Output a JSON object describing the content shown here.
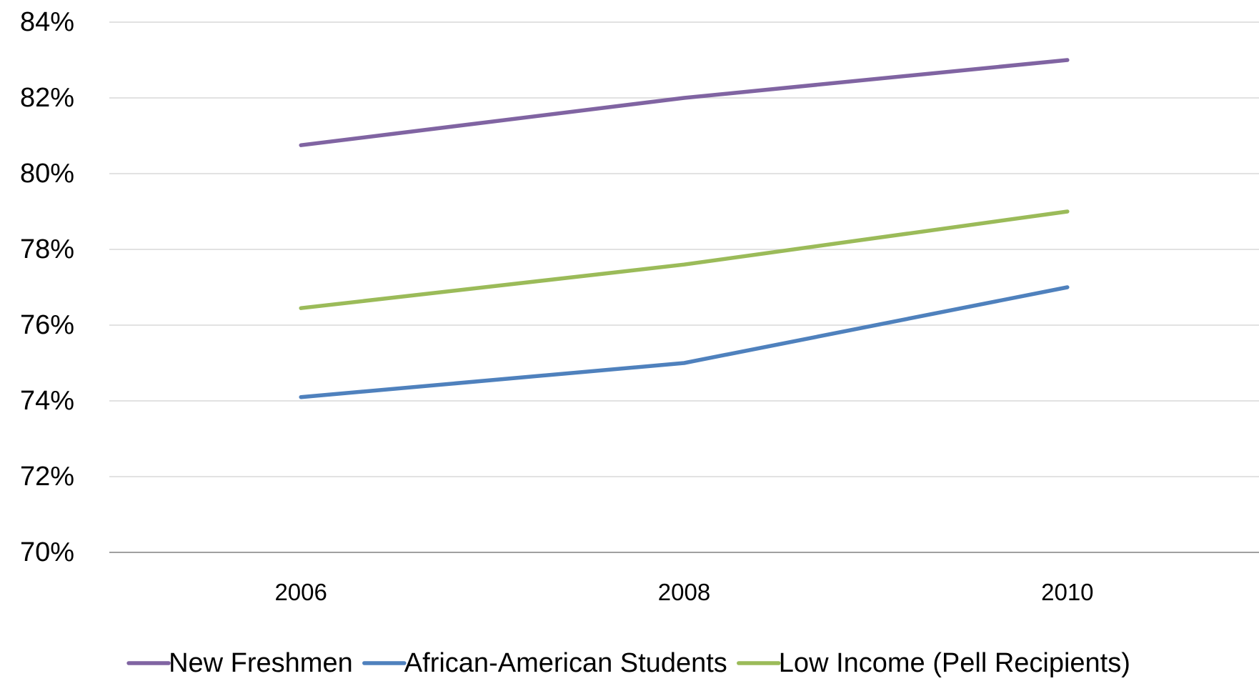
{
  "chart_data": {
    "type": "line",
    "title": "",
    "xlabel": "",
    "ylabel": "",
    "categories": [
      "2006",
      "2008",
      "2010"
    ],
    "ylim": [
      0.7,
      0.84
    ],
    "yticks": [
      "70%",
      "72%",
      "74%",
      "76%",
      "78%",
      "80%",
      "82%",
      "84%"
    ],
    "grid": true,
    "legend": "bottom",
    "series": [
      {
        "name": "New Freshmen",
        "color": "#8064a2",
        "values": [
          0.8075,
          0.82,
          0.83
        ]
      },
      {
        "name": "African-American Students",
        "color": "#4f81bd",
        "values": [
          0.741,
          0.75,
          0.77
        ]
      },
      {
        "name": "Low Income (Pell Recipients)",
        "color": "#9bbb59",
        "values": [
          0.7645,
          0.776,
          0.79
        ]
      }
    ]
  }
}
